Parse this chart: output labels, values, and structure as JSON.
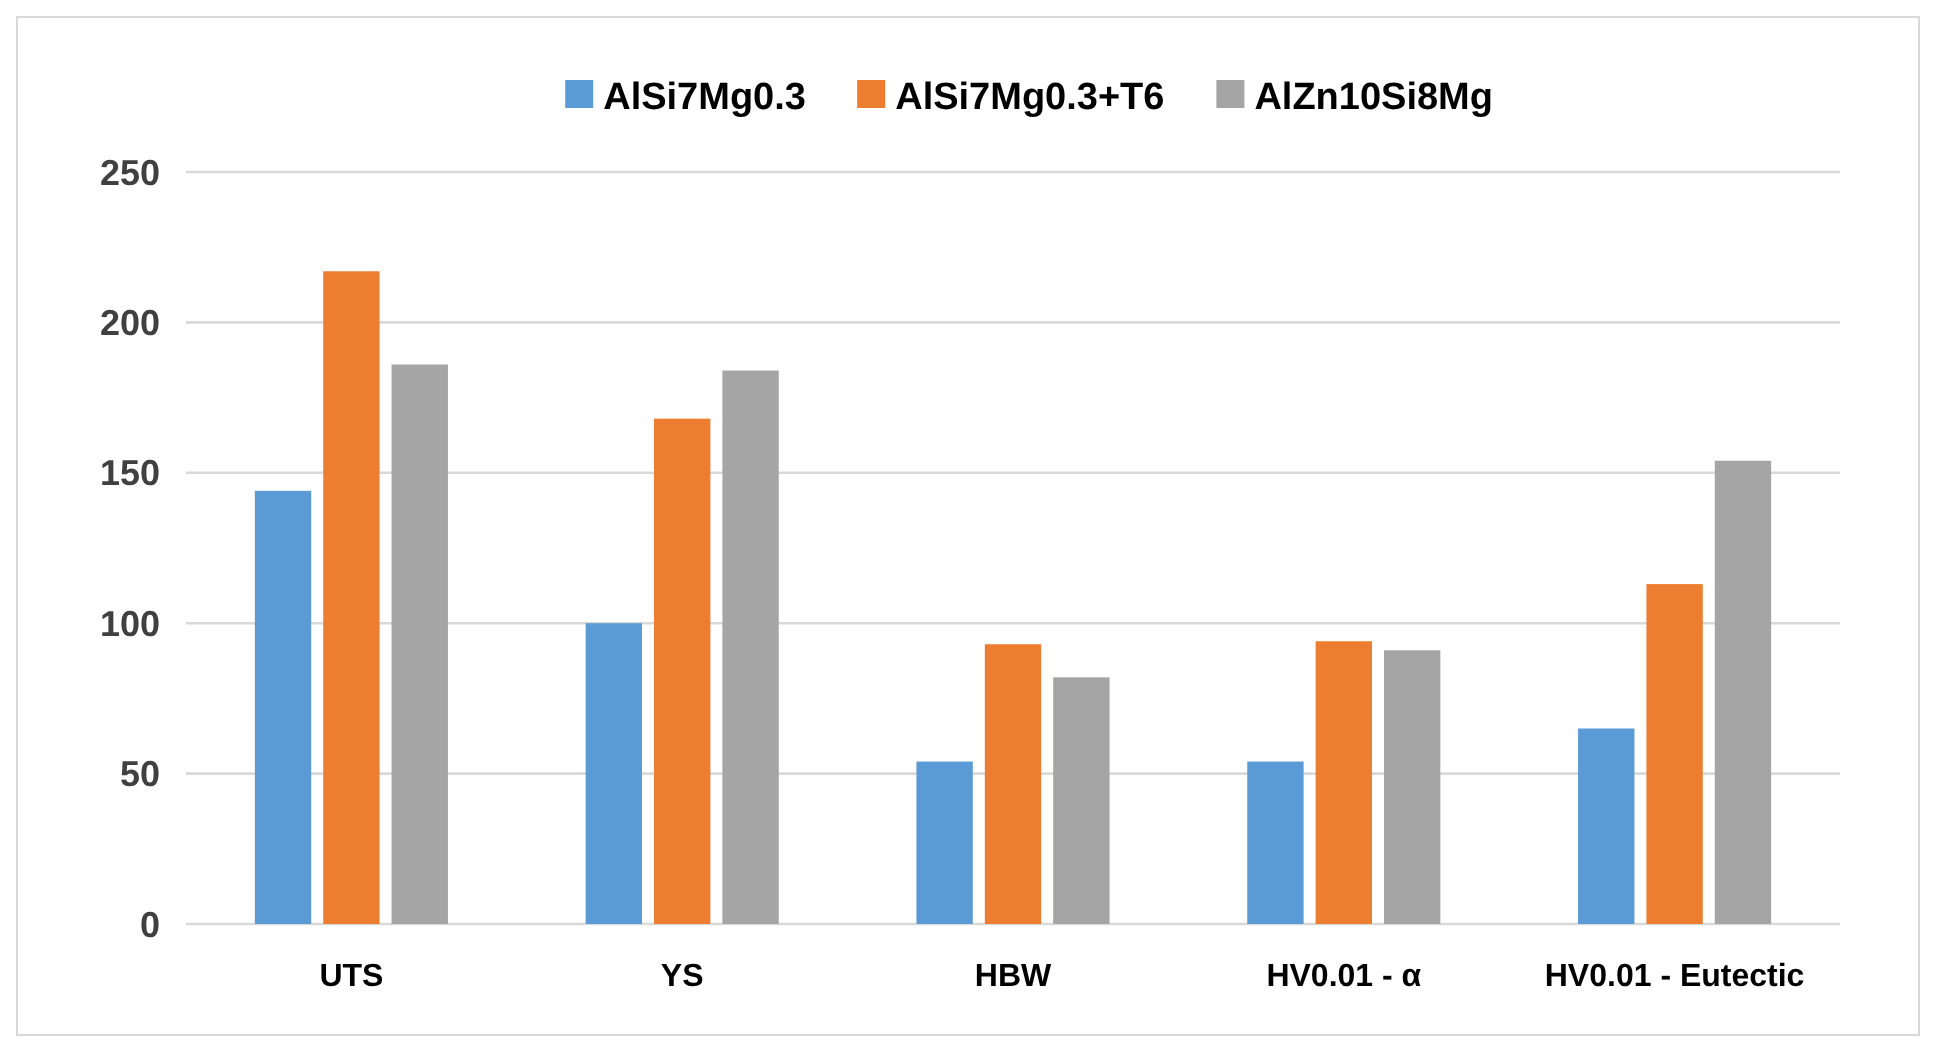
{
  "chart_data": {
    "type": "bar",
    "categories": [
      "UTS",
      "YS",
      "HBW",
      "HV0.01 - α",
      "HV0.01 - Eutectic"
    ],
    "series": [
      {
        "name": "AlSi7Mg0.3",
        "color": "#5b9bd5",
        "values": [
          144,
          100,
          54,
          54,
          65
        ]
      },
      {
        "name": "AlSi7Mg0.3+T6",
        "color": "#ed7d31",
        "values": [
          217,
          168,
          93,
          94,
          113
        ]
      },
      {
        "name": "AlZn10Si8Mg",
        "color": "#a5a5a5",
        "values": [
          186,
          184,
          82,
          91,
          154
        ]
      }
    ],
    "ylim": [
      0,
      250
    ],
    "yticks": [
      0,
      50,
      100,
      150,
      200,
      250
    ],
    "grid": "y",
    "legend": "top"
  }
}
